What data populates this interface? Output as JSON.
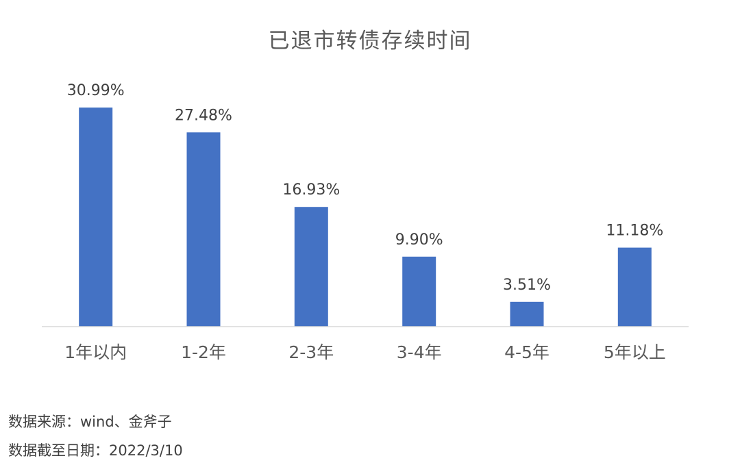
{
  "chart_data": {
    "type": "bar",
    "title": "已退市转债存续时间",
    "xlabel": "",
    "ylabel": "",
    "categories": [
      "1年以内",
      "1-2年",
      "2-3年",
      "3-4年",
      "4-5年",
      "5年以上"
    ],
    "values": [
      30.99,
      27.48,
      16.93,
      9.9,
      3.51,
      11.18
    ],
    "data_labels": [
      "30.99%",
      "27.48%",
      "16.93%",
      "9.90%",
      "3.51%",
      "11.18%"
    ],
    "ylim": [
      0,
      31
    ],
    "grid": false,
    "legend": "none",
    "bar_color": "#4472C4"
  },
  "notes": {
    "source": "数据来源：wind、金斧子",
    "date": "数据截至日期：2022/3/10"
  }
}
